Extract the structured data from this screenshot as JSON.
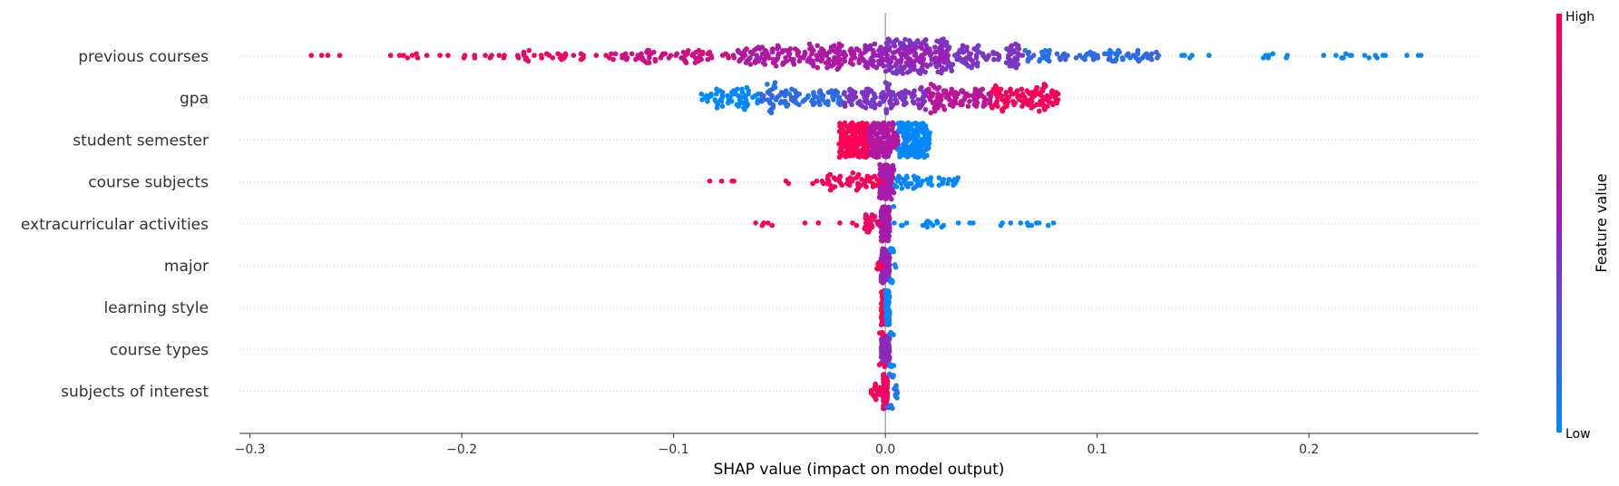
{
  "chart_data": {
    "type": "scatter",
    "subtype": "shap-beeswarm",
    "xlabel": "SHAP value (impact on model output)",
    "xlim": [
      -0.305,
      0.28
    ],
    "xticks": [
      -0.3,
      -0.2,
      -0.1,
      0.0,
      0.1,
      0.2
    ],
    "xtick_labels": [
      "−0.3",
      "−0.2",
      "−0.1",
      "0.0",
      "0.1",
      "0.2"
    ],
    "grid": "horizontal dotted row lines",
    "colorbar": {
      "title": "Feature value",
      "high_label": "High",
      "low_label": "Low",
      "low_color": "#008bfb",
      "high_color": "#ff0052",
      "mid_color": "#9b1fb6"
    },
    "features": [
      {
        "name": "previous courses",
        "points": [
          {
            "range": [
              -0.28,
              -0.2
            ],
            "n": 14,
            "value": 1.0
          },
          {
            "range": [
              -0.2,
              -0.13
            ],
            "n": 40,
            "value": 0.9
          },
          {
            "range": [
              -0.13,
              -0.07
            ],
            "n": 70,
            "value": 0.75
          },
          {
            "range": [
              -0.07,
              -0.01
            ],
            "n": 160,
            "value": 0.6
          },
          {
            "range": [
              -0.01,
              0.03
            ],
            "n": 150,
            "value": 0.5
          },
          {
            "range": [
              0.0,
              0.065
            ],
            "n": 150,
            "value": 0.4
          },
          {
            "range": [
              0.065,
              0.13
            ],
            "n": 80,
            "value": 0.15
          },
          {
            "range": [
              0.13,
              0.253
            ],
            "n": 28,
            "value": 0.0
          }
        ]
      },
      {
        "name": "gpa",
        "points": [
          {
            "range": [
              -0.087,
              -0.06
            ],
            "n": 60,
            "value": 0.0
          },
          {
            "range": [
              -0.06,
              -0.02
            ],
            "n": 90,
            "value": 0.15
          },
          {
            "range": [
              -0.02,
              0.02
            ],
            "n": 110,
            "value": 0.4
          },
          {
            "range": [
              0.02,
              0.05
            ],
            "n": 90,
            "value": 0.65
          },
          {
            "range": [
              0.05,
              0.082
            ],
            "n": 100,
            "value": 0.95
          }
        ]
      },
      {
        "name": "student semester",
        "points": [
          {
            "range": [
              -0.022,
              -0.008
            ],
            "n": 180,
            "value": 1.0
          },
          {
            "range": [
              -0.008,
              0.006
            ],
            "n": 160,
            "value": 0.6
          },
          {
            "range": [
              0.006,
              0.021
            ],
            "n": 180,
            "value": 0.0
          }
        ]
      },
      {
        "name": "course subjects",
        "points": [
          {
            "range": [
              -0.094,
              -0.03
            ],
            "n": 8,
            "value": 1.0
          },
          {
            "range": [
              -0.03,
              0.0
            ],
            "n": 60,
            "value": 0.95
          },
          {
            "range": [
              -0.003,
              0.004
            ],
            "n": 100,
            "value": 0.55
          },
          {
            "range": [
              0.004,
              0.035
            ],
            "n": 45,
            "value": 0.0
          }
        ]
      },
      {
        "name": "extracurricular activities",
        "points": [
          {
            "range": [
              -0.082,
              -0.01
            ],
            "n": 10,
            "value": 1.0
          },
          {
            "range": [
              -0.01,
              0.0
            ],
            "n": 30,
            "value": 0.9
          },
          {
            "range": [
              -0.002,
              0.002
            ],
            "n": 120,
            "value": 0.55
          },
          {
            "range": [
              0.002,
              0.08
            ],
            "n": 30,
            "value": 0.0
          }
        ]
      },
      {
        "name": "major",
        "points": [
          {
            "range": [
              -0.004,
              0.0
            ],
            "n": 20,
            "value": 1.0
          },
          {
            "range": [
              -0.002,
              0.002
            ],
            "n": 100,
            "value": 0.5
          },
          {
            "range": [
              0.002,
              0.005
            ],
            "n": 15,
            "value": 0.0
          }
        ]
      },
      {
        "name": "learning style",
        "points": [
          {
            "range": [
              -0.002,
              0.0
            ],
            "n": 60,
            "value": 1.0
          },
          {
            "range": [
              0.0,
              0.002
            ],
            "n": 60,
            "value": 0.0
          }
        ]
      },
      {
        "name": "course types",
        "points": [
          {
            "range": [
              -0.002,
              0.002
            ],
            "n": 110,
            "value": 0.45
          },
          {
            "range": [
              -0.003,
              0.0
            ],
            "n": 10,
            "value": 1.0
          },
          {
            "range": [
              0.002,
              0.004
            ],
            "n": 10,
            "value": 0.0
          }
        ]
      },
      {
        "name": "subjects of interest",
        "points": [
          {
            "range": [
              -0.007,
              -0.001
            ],
            "n": 25,
            "value": 1.0
          },
          {
            "range": [
              -0.001,
              0.001
            ],
            "n": 100,
            "value": 0.9
          },
          {
            "range": [
              0.001,
              0.006
            ],
            "n": 20,
            "value": 0.1
          }
        ]
      }
    ]
  }
}
